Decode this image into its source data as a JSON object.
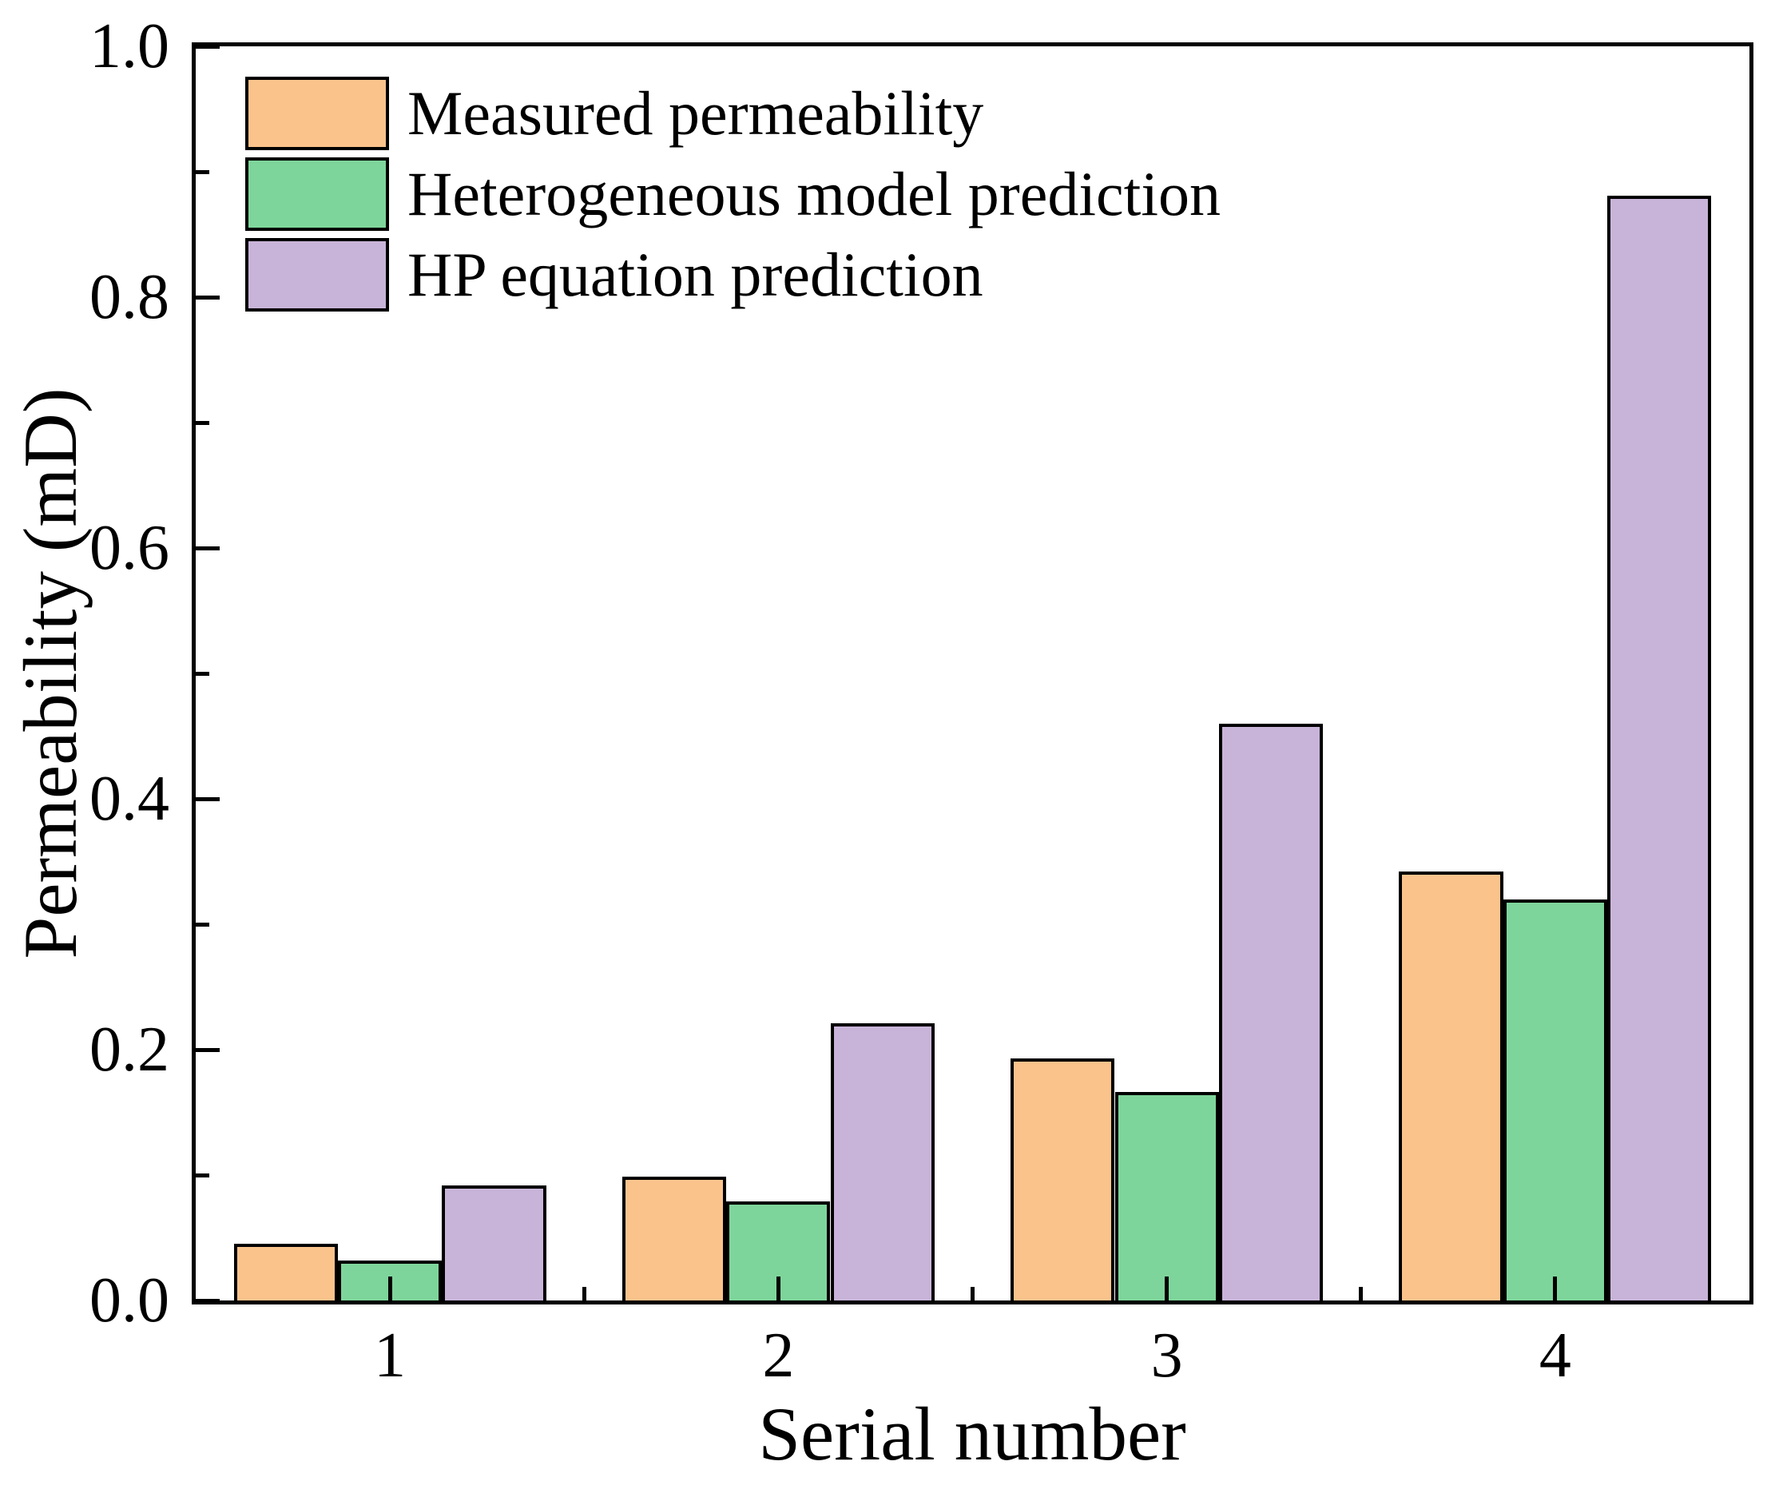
{
  "chart_data": {
    "type": "bar",
    "title": "",
    "xlabel": "Serial number",
    "ylabel": "Permeability (mD)",
    "categories": [
      "1",
      "2",
      "3",
      "4"
    ],
    "x": [
      1,
      2,
      3,
      4
    ],
    "xlim": [
      0.5,
      4.5
    ],
    "ylim": [
      0.0,
      1.0
    ],
    "yticks": [
      0.0,
      0.2,
      0.4,
      0.6,
      0.8,
      1.0
    ],
    "y_minor_ticks": [
      0.1,
      0.3,
      0.5,
      0.7,
      0.9
    ],
    "x_minor_ticks": [
      1.5,
      2.5,
      3.5
    ],
    "grid": false,
    "legend_position": "top-left-inside",
    "axis_color": "#000000",
    "bar_edge_color": "#000000",
    "series": [
      {
        "name": "Measured permeability",
        "color": "#FBC38C",
        "values": [
          0.045,
          0.099,
          0.193,
          0.342
        ]
      },
      {
        "name": "Heterogeneous model prediction",
        "color": "#7ED59B",
        "values": [
          0.032,
          0.079,
          0.166,
          0.32
        ]
      },
      {
        "name": "HP equation prediction",
        "color": "#C8B4D8",
        "values": [
          0.092,
          0.221,
          0.46,
          0.881
        ]
      }
    ]
  }
}
